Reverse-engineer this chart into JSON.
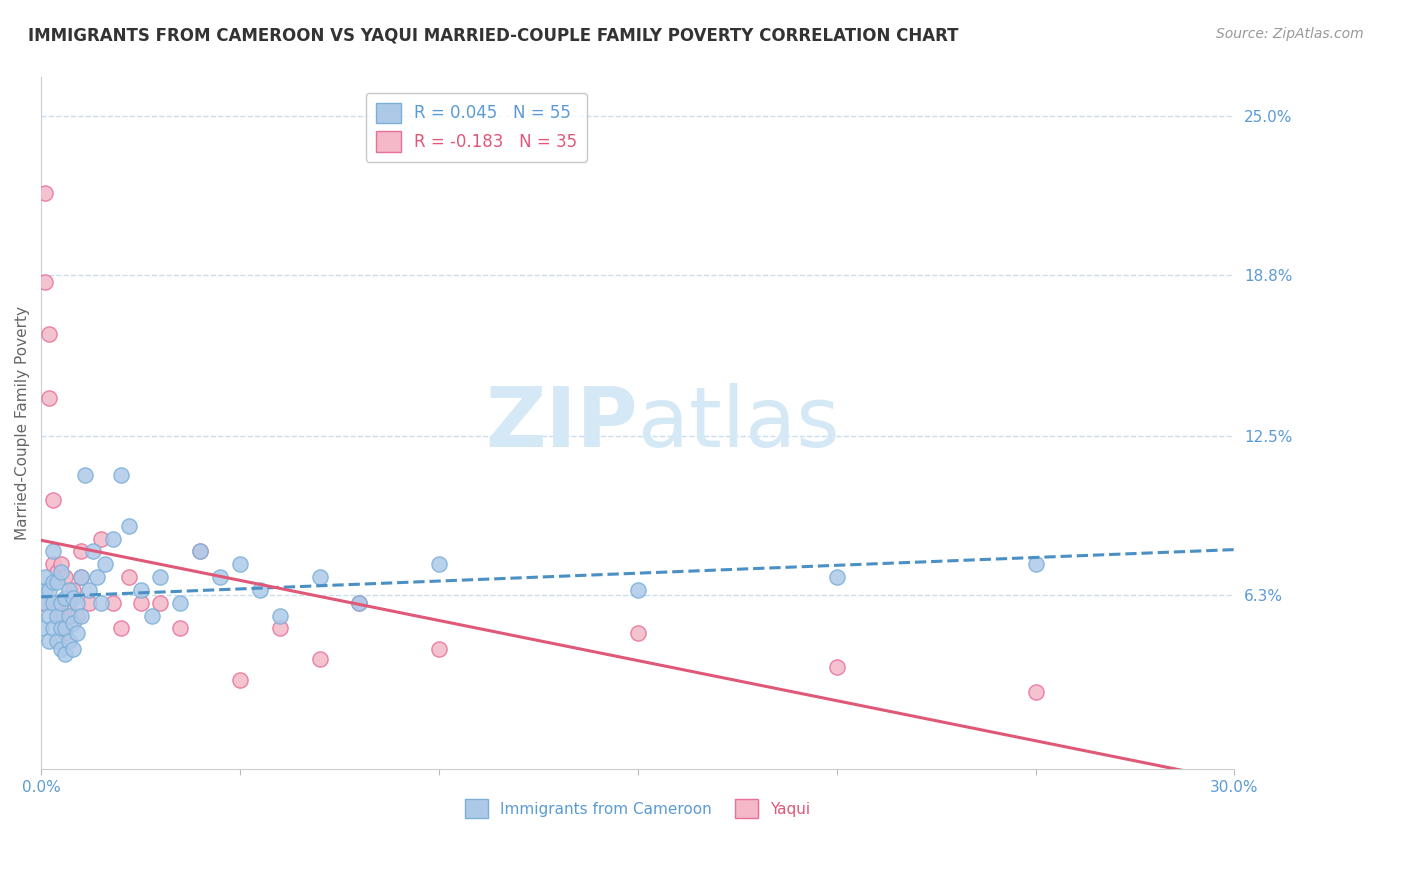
{
  "title": "IMMIGRANTS FROM CAMEROON VS YAQUI MARRIED-COUPLE FAMILY POVERTY CORRELATION CHART",
  "source_text": "Source: ZipAtlas.com",
  "ylabel": "Married-Couple Family Poverty",
  "xlim": [
    0.0,
    0.3
  ],
  "ylim": [
    -0.005,
    0.265
  ],
  "xticks": [
    0.0,
    0.05,
    0.1,
    0.15,
    0.2,
    0.25,
    0.3
  ],
  "xtick_labels": [
    "0.0%",
    "",
    "",
    "",
    "",
    "",
    "30.0%"
  ],
  "ytick_vals_right": [
    0.063,
    0.125,
    0.188,
    0.25
  ],
  "ytick_labels_right": [
    "6.3%",
    "12.5%",
    "18.8%",
    "25.0%"
  ],
  "grid_color": "#c8dff0",
  "background_color": "#ffffff",
  "watermark_color": "#d5e8f5",
  "series1_name": "Immigrants from Cameroon",
  "series1_R": 0.045,
  "series1_N": 55,
  "series1_face_color": "#aec9e8",
  "series1_edge_color": "#7ab0d8",
  "series1_line_color": "#4a90c4",
  "series2_name": "Yaqui",
  "series2_R": -0.183,
  "series2_N": 35,
  "series2_face_color": "#f4b8c8",
  "series2_edge_color": "#e87098",
  "series2_line_color": "#e05878",
  "series1_x": [
    0.0,
    0.001,
    0.001,
    0.001,
    0.002,
    0.002,
    0.002,
    0.003,
    0.003,
    0.003,
    0.003,
    0.004,
    0.004,
    0.004,
    0.005,
    0.005,
    0.005,
    0.005,
    0.006,
    0.006,
    0.006,
    0.007,
    0.007,
    0.007,
    0.008,
    0.008,
    0.008,
    0.009,
    0.009,
    0.01,
    0.01,
    0.011,
    0.012,
    0.013,
    0.014,
    0.015,
    0.016,
    0.018,
    0.02,
    0.022,
    0.025,
    0.028,
    0.03,
    0.035,
    0.04,
    0.045,
    0.05,
    0.055,
    0.06,
    0.07,
    0.08,
    0.1,
    0.15,
    0.2,
    0.25
  ],
  "series1_y": [
    0.05,
    0.06,
    0.065,
    0.07,
    0.045,
    0.055,
    0.065,
    0.05,
    0.06,
    0.068,
    0.08,
    0.045,
    0.055,
    0.068,
    0.042,
    0.05,
    0.06,
    0.072,
    0.04,
    0.05,
    0.062,
    0.045,
    0.055,
    0.065,
    0.042,
    0.052,
    0.062,
    0.048,
    0.06,
    0.055,
    0.07,
    0.11,
    0.065,
    0.08,
    0.07,
    0.06,
    0.075,
    0.085,
    0.11,
    0.09,
    0.065,
    0.055,
    0.07,
    0.06,
    0.08,
    0.07,
    0.075,
    0.065,
    0.055,
    0.07,
    0.06,
    0.075,
    0.065,
    0.07,
    0.075
  ],
  "series2_x": [
    0.0,
    0.001,
    0.001,
    0.002,
    0.002,
    0.003,
    0.003,
    0.004,
    0.004,
    0.005,
    0.005,
    0.006,
    0.006,
    0.007,
    0.008,
    0.009,
    0.01,
    0.01,
    0.012,
    0.015,
    0.018,
    0.02,
    0.022,
    0.025,
    0.03,
    0.035,
    0.04,
    0.05,
    0.06,
    0.07,
    0.08,
    0.1,
    0.15,
    0.2,
    0.25
  ],
  "series2_y": [
    0.06,
    0.185,
    0.22,
    0.14,
    0.165,
    0.075,
    0.1,
    0.06,
    0.072,
    0.055,
    0.075,
    0.048,
    0.07,
    0.06,
    0.065,
    0.055,
    0.07,
    0.08,
    0.06,
    0.085,
    0.06,
    0.05,
    0.07,
    0.06,
    0.06,
    0.05,
    0.08,
    0.03,
    0.05,
    0.038,
    0.06,
    0.042,
    0.048,
    0.035,
    0.025
  ]
}
